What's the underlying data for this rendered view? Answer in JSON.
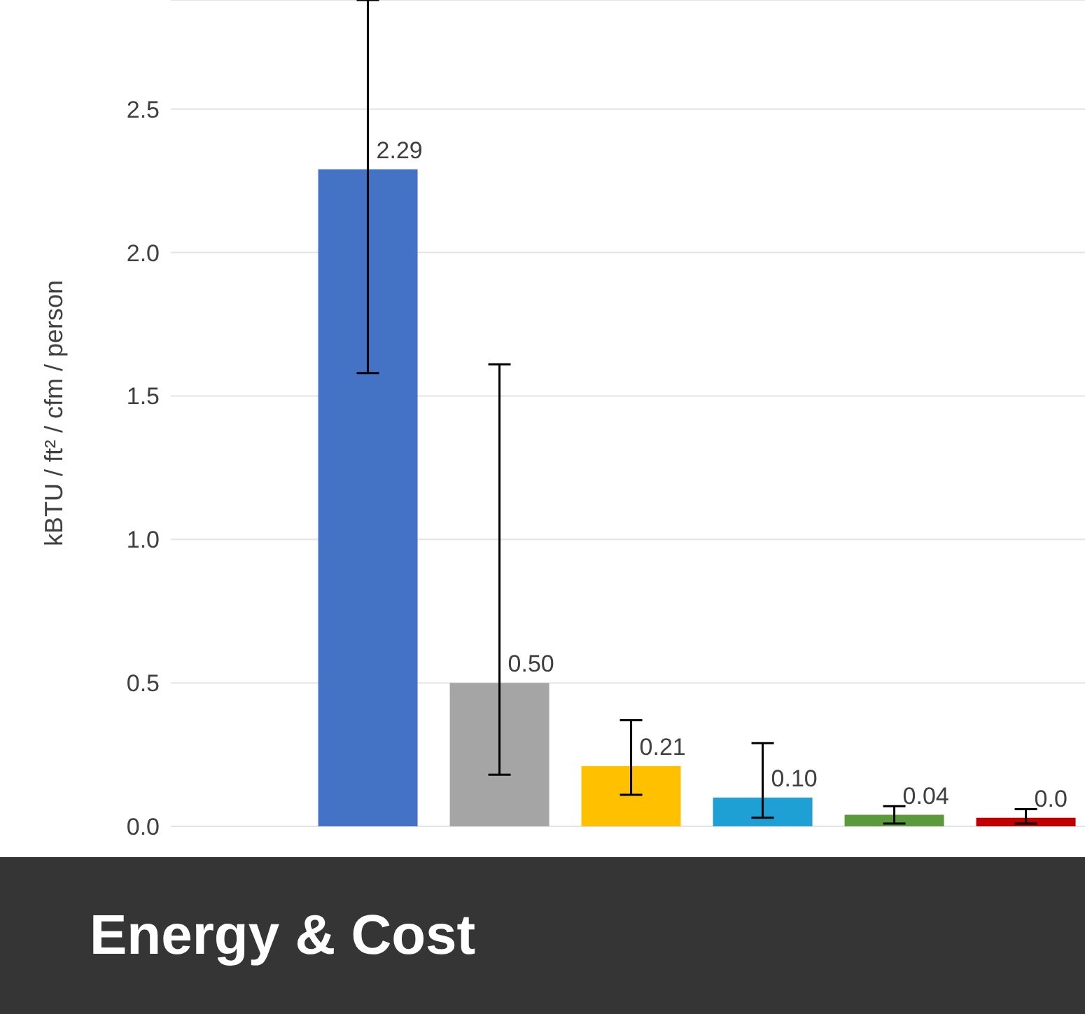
{
  "chart_data": {
    "type": "bar",
    "title": "Energy & Cost",
    "ylabel": "kBTU / ft² / cfm / person",
    "categories": [
      null,
      null,
      null,
      null,
      null,
      null,
      null
    ],
    "values": [
      null,
      2.29,
      0.5,
      0.21,
      0.1,
      0.04,
      0.03
    ],
    "value_labels": [
      null,
      "2.29",
      "0.50",
      "0.21",
      "0.10",
      "0.04",
      "0.0"
    ],
    "colors": [
      "#4472c4",
      "#4472c4",
      "#a5a5a5",
      "#ffc000",
      "#1ea0d4",
      "#5b9a3c",
      "#c00000"
    ],
    "errors": [
      null,
      [
        1.58,
        2.88
      ],
      [
        0.18,
        1.61
      ],
      [
        0.11,
        0.37
      ],
      [
        0.03,
        0.29
      ],
      [
        0.01,
        0.07
      ],
      [
        0.01,
        0.06
      ]
    ],
    "ylim": [
      0,
      2.88
    ],
    "yticks": [
      {
        "value": 0,
        "label": "0.0"
      },
      {
        "value": 0.5,
        "label": "0.5"
      },
      {
        "value": 1,
        "label": "1.0"
      },
      {
        "value": 1.5,
        "label": "1.5"
      },
      {
        "value": 2,
        "label": "2.0"
      },
      {
        "value": 2.5,
        "label": "2.5"
      }
    ],
    "grid": "y"
  }
}
